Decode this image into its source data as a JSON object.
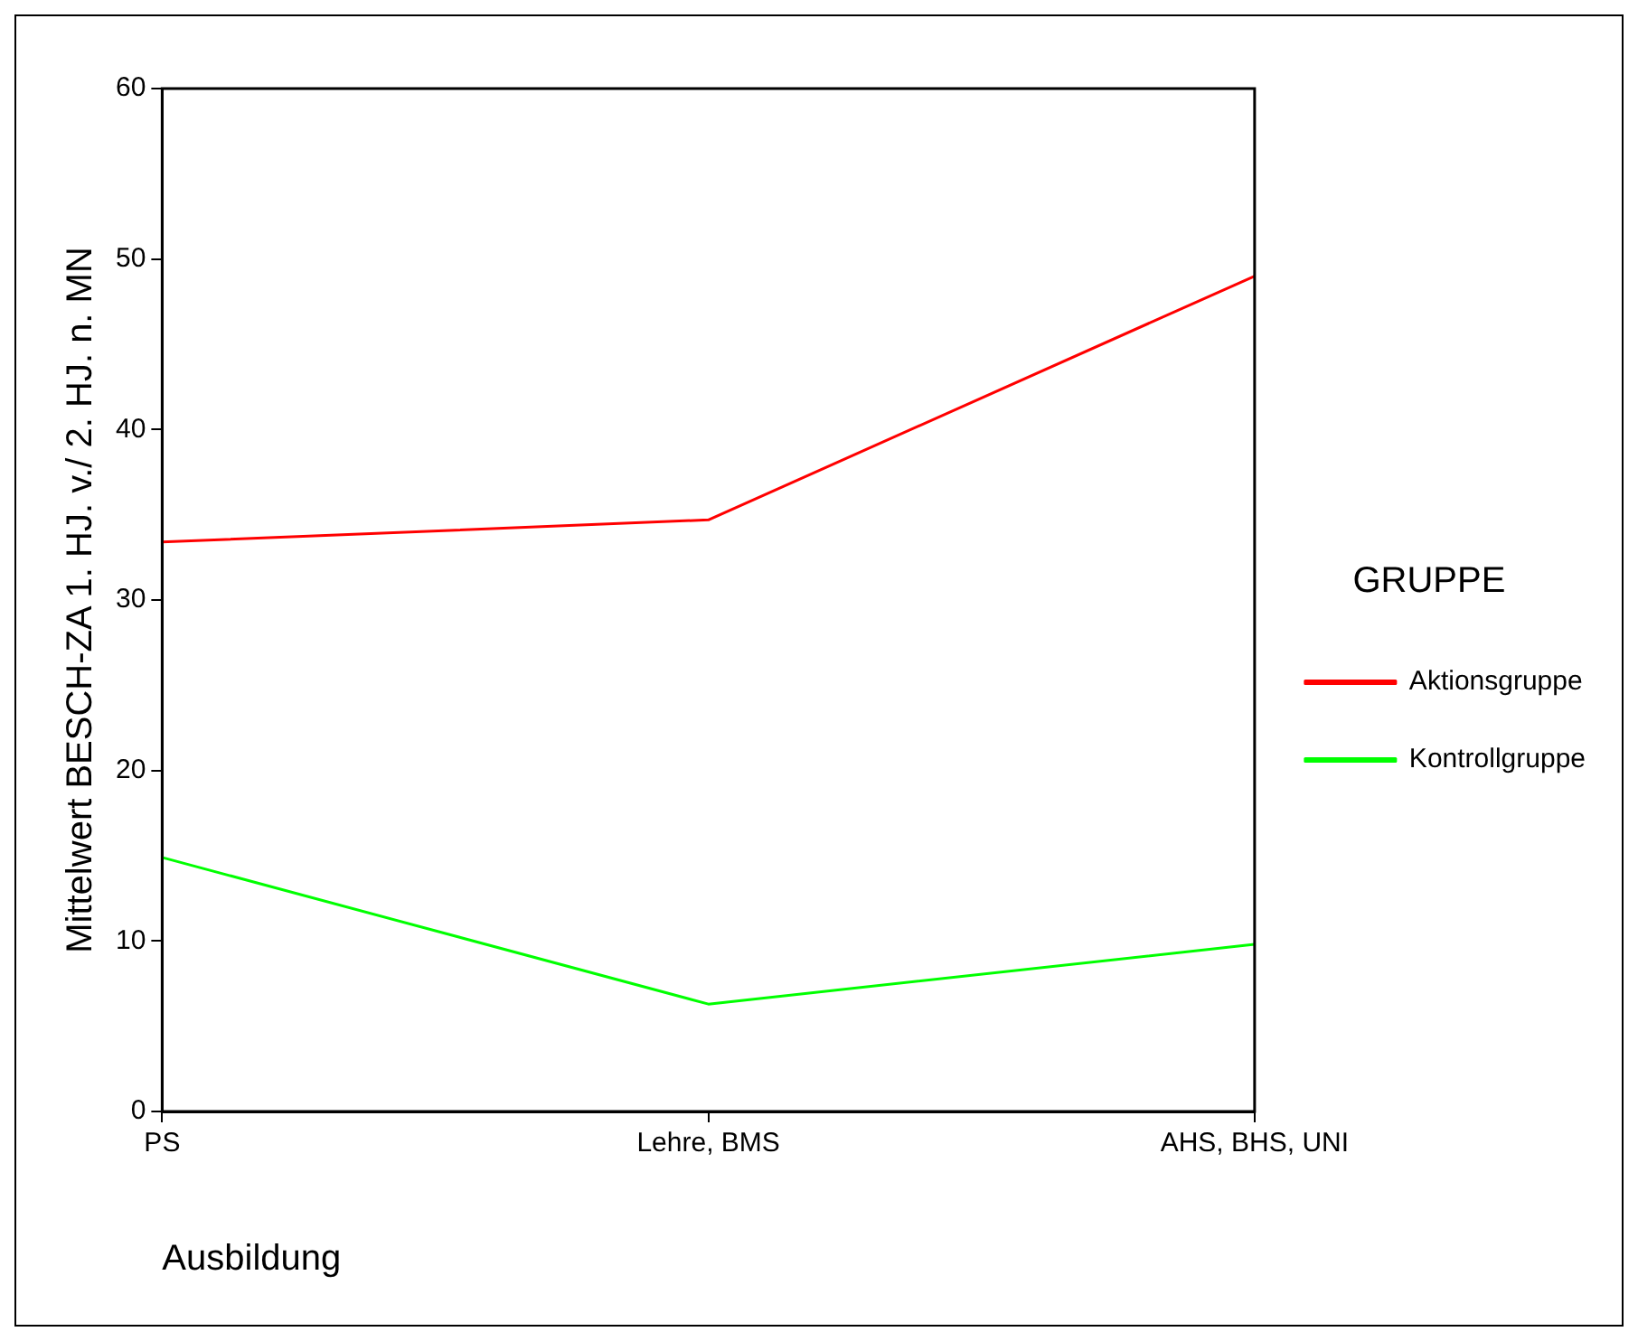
{
  "chart_data": {
    "type": "line",
    "xlabel": "Ausbildung",
    "ylabel": "Mittelwert BESCH-ZA 1. HJ. v./ 2. HJ. n. MN",
    "legend_title": "GRUPPE",
    "categories": [
      "PS",
      "Lehre, BMS",
      "AHS, BHS, UNI"
    ],
    "series": [
      {
        "name": "Aktionsgruppe",
        "color": "#ff0000",
        "values": [
          33.4,
          34.7,
          49.0
        ]
      },
      {
        "name": "Kontrollgruppe",
        "color": "#00ff00",
        "values": [
          14.9,
          6.3,
          9.8
        ]
      }
    ],
    "ylim": [
      0,
      60
    ],
    "yticks": [
      0,
      10,
      20,
      30,
      40,
      50,
      60
    ],
    "grid": false,
    "legend": "right",
    "marker": "none",
    "line_style": "solid"
  }
}
